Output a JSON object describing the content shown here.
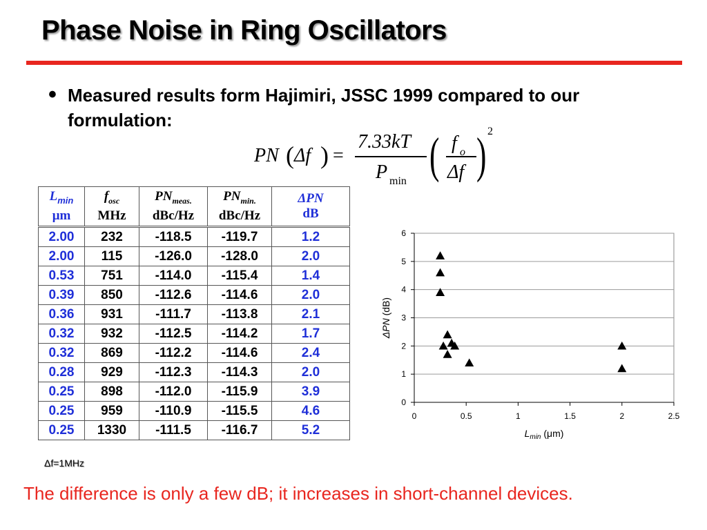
{
  "slide": {
    "title": "Phase Noise in Ring Oscillators",
    "bullet": "Measured results form Hajimiri, JSSC 1999 compared to our formulation:",
    "formula": {
      "lhs_pn": "PN",
      "lhs_arg": "Δf",
      "equals": "=",
      "numerator": "7.33kT",
      "denominator_p": "P",
      "denominator_sub": "min",
      "inner_num": "f",
      "inner_num_sub": "o",
      "inner_den": "Δf",
      "exponent": "2"
    },
    "note": "Δf=1MHz",
    "footer": "The difference is only a few dB; it increases in short-channel devices."
  },
  "table": {
    "headers": [
      {
        "main": "L",
        "sub": "min",
        "unit": "μm"
      },
      {
        "main": "f",
        "sub": "osc",
        "unit": "MHz"
      },
      {
        "main": "PN",
        "sub": "meas.",
        "unit": "dBc/Hz"
      },
      {
        "main": "PN",
        "sub": "min.",
        "unit": "dBc/Hz"
      },
      {
        "main": "ΔPN",
        "sub": "",
        "unit": "dB"
      }
    ],
    "rows": [
      [
        "2.00",
        "232",
        "-118.5",
        "-119.7",
        "1.2"
      ],
      [
        "2.00",
        "115",
        "-126.0",
        "-128.0",
        "2.0"
      ],
      [
        "0.53",
        "751",
        "-114.0",
        "-115.4",
        "1.4"
      ],
      [
        "0.39",
        "850",
        "-112.6",
        "-114.6",
        "2.0"
      ],
      [
        "0.36",
        "931",
        "-111.7",
        "-113.8",
        "2.1"
      ],
      [
        "0.32",
        "932",
        "-112.5",
        "-114.2",
        "1.7"
      ],
      [
        "0.32",
        "869",
        "-112.2",
        "-114.6",
        "2.4"
      ],
      [
        "0.28",
        "929",
        "-112.3",
        "-114.3",
        "2.0"
      ],
      [
        "0.25",
        "898",
        "-112.0",
        "-115.9",
        "3.9"
      ],
      [
        "0.25",
        "959",
        "-110.9",
        "-115.5",
        "4.6"
      ],
      [
        "0.25",
        "1330",
        "-111.5",
        "-116.7",
        "5.2"
      ]
    ]
  },
  "colors": {
    "title_rule": "#e8261f",
    "footer_text": "#e8261f",
    "lmin_column": "#1f2fd8",
    "dpn_column": "#1f2fd8"
  },
  "chart_data": {
    "type": "scatter",
    "marker": "triangle",
    "xlabel": "L",
    "xlabel_sub": "min",
    "xlabel_unit": "(μm)",
    "ylabel": "ΔPN",
    "ylabel_unit": "(dB)",
    "xlim": [
      0,
      2.5
    ],
    "ylim": [
      0,
      6
    ],
    "xticks": [
      "0",
      "0.5",
      "1",
      "1.5",
      "2",
      "2.5"
    ],
    "yticks": [
      "0",
      "1",
      "2",
      "3",
      "4",
      "5",
      "6"
    ],
    "grid": "horizontal",
    "points": [
      {
        "x": 2.0,
        "y": 1.2
      },
      {
        "x": 2.0,
        "y": 2.0
      },
      {
        "x": 0.53,
        "y": 1.4
      },
      {
        "x": 0.39,
        "y": 2.0
      },
      {
        "x": 0.36,
        "y": 2.1
      },
      {
        "x": 0.32,
        "y": 1.7
      },
      {
        "x": 0.32,
        "y": 2.4
      },
      {
        "x": 0.28,
        "y": 2.0
      },
      {
        "x": 0.25,
        "y": 3.9
      },
      {
        "x": 0.25,
        "y": 4.6
      },
      {
        "x": 0.25,
        "y": 5.2
      }
    ]
  }
}
